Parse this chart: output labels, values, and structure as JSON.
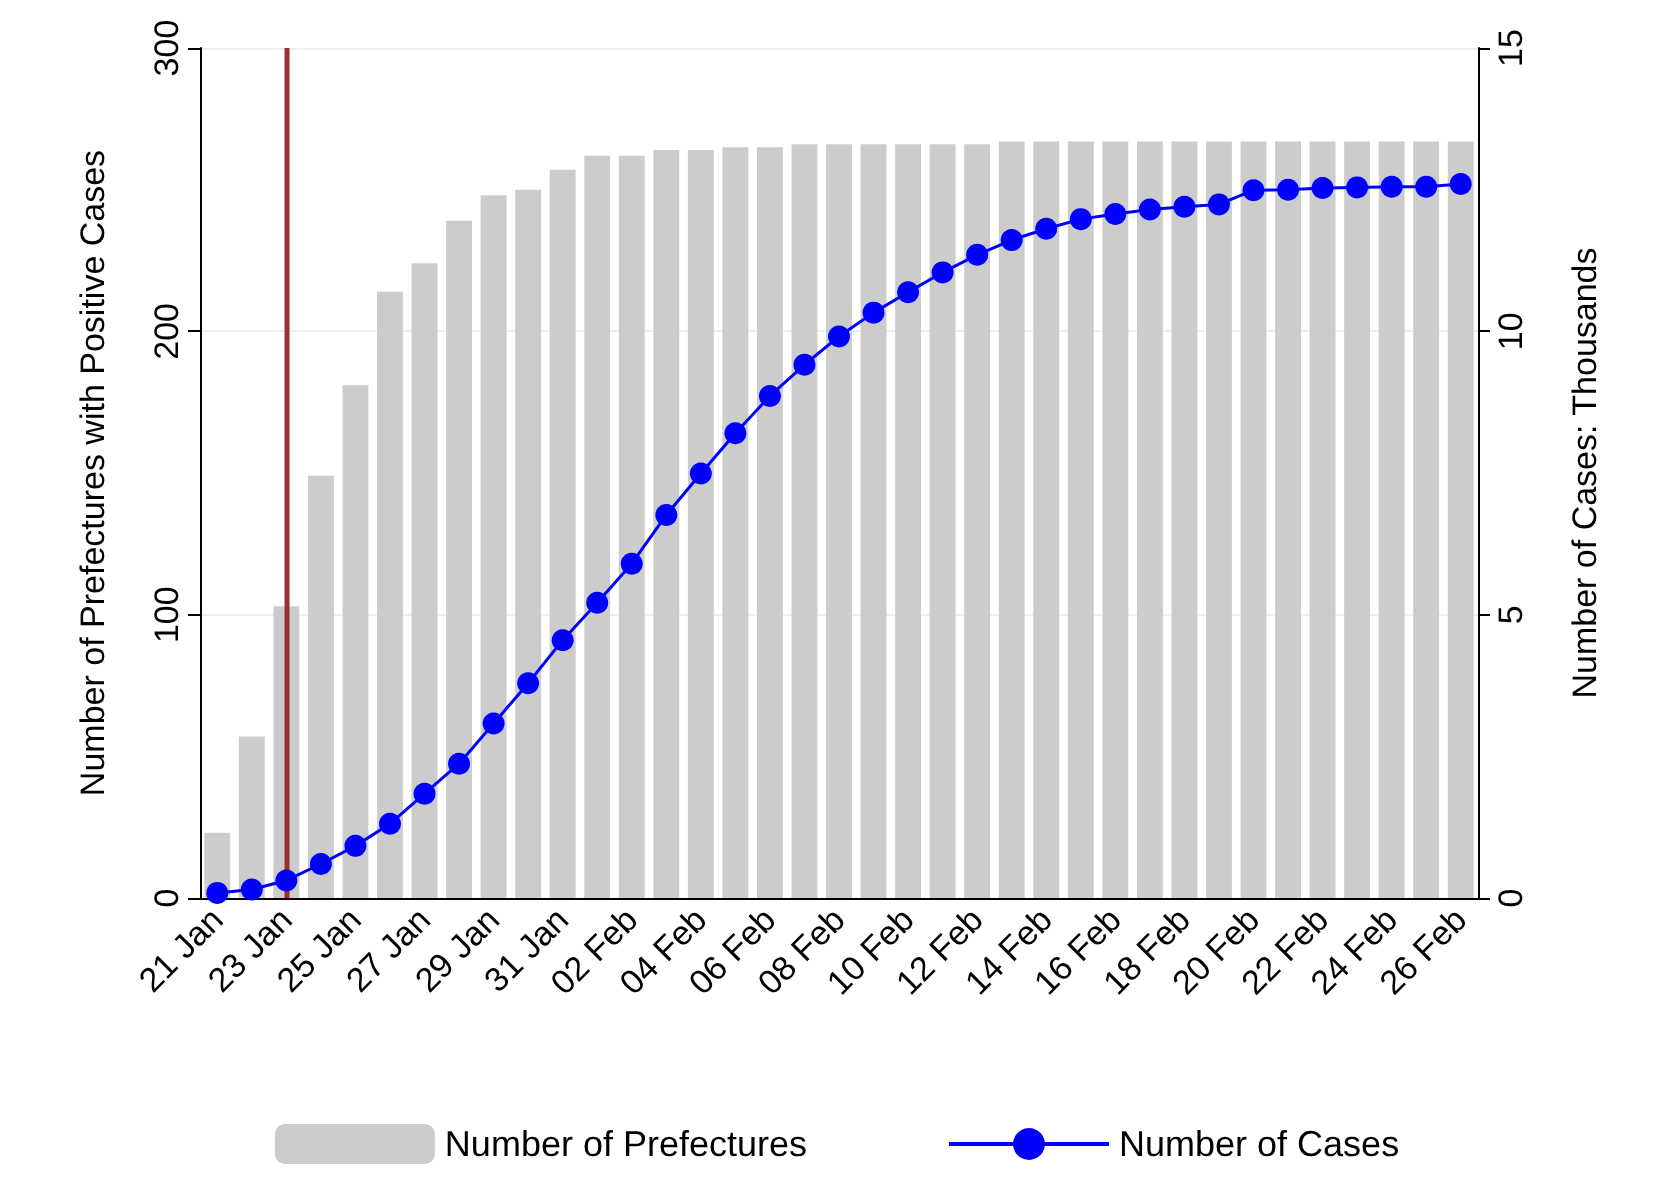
{
  "chart_data": {
    "type": "bar",
    "ylabel": "Number of Prefectures with Positive Cases",
    "y2label": "Number of Cases: Thousands",
    "categories": [
      "21 Jan",
      null,
      "23 Jan",
      null,
      "25 Jan",
      null,
      "27 Jan",
      null,
      "29 Jan",
      null,
      "31 Jan",
      null,
      "02 Feb",
      null,
      "04 Feb",
      null,
      "06 Feb",
      null,
      "08 Feb",
      null,
      "10 Feb",
      null,
      "12 Feb",
      null,
      "14 Feb",
      null,
      "16 Feb",
      null,
      "18 Feb",
      null,
      "20 Feb",
      null,
      "22 Feb",
      null,
      "24 Feb",
      null,
      "26 Feb"
    ],
    "series": [
      {
        "name": "Number of Prefectures",
        "color": "#cccccc",
        "values": [
          23,
          57,
          103,
          149,
          181,
          214,
          224,
          239,
          248,
          250,
          257,
          262,
          262,
          264,
          264,
          265,
          265,
          266,
          266,
          266,
          266,
          266,
          266,
          267,
          267,
          267,
          267,
          267,
          267,
          267,
          267,
          267,
          267,
          267,
          267,
          267,
          267
        ]
      },
      {
        "name": "Number of Cases",
        "type": "line",
        "axis": "y2",
        "color": "#0000ff",
        "marker": "circle",
        "values": [
          0.09,
          0.15,
          0.31,
          0.6,
          0.92,
          1.31,
          1.84,
          2.37,
          3.08,
          3.79,
          4.55,
          5.21,
          5.9,
          6.76,
          7.49,
          8.2,
          8.86,
          9.41,
          9.91,
          10.33,
          10.69,
          11.04,
          11.35,
          11.61,
          11.81,
          11.98,
          12.07,
          12.15,
          12.2,
          12.24,
          12.49,
          12.5,
          12.53,
          12.54,
          12.55,
          12.55,
          12.6
        ]
      }
    ],
    "ylim": [
      0,
      300
    ],
    "yticks": [
      0,
      100,
      200,
      300
    ],
    "y2lim": [
      0,
      15
    ],
    "y2ticks": [
      0,
      5,
      10,
      15
    ],
    "ref_lines": [
      {
        "axis": "x",
        "value": "23 Jan",
        "color": "#9b3030"
      }
    ],
    "grid": "y",
    "legend": "bottom"
  }
}
